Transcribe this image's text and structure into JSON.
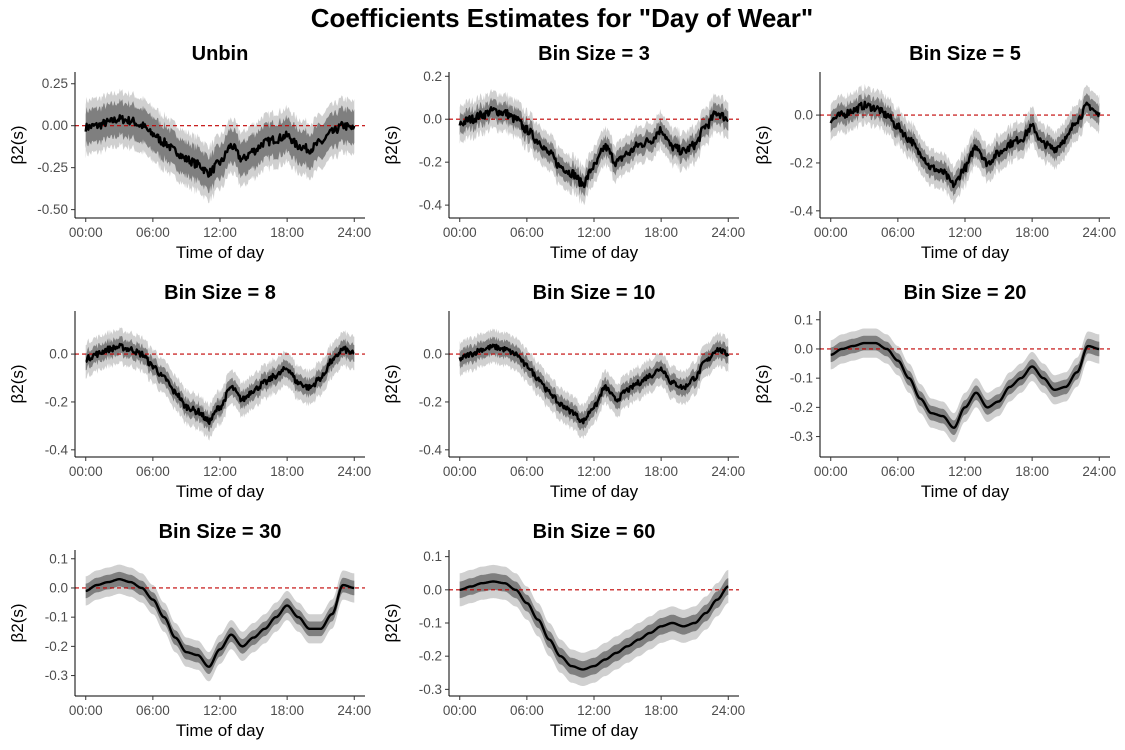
{
  "figure": {
    "title": "Coefficients Estimates for \"Day of Wear\"",
    "colors": {
      "estimate": "#000000",
      "inner_band": "#7f7f7f",
      "outer_band": "#d0d0d0",
      "zero_line": "#c00000",
      "axis": "#000000",
      "tick_text": "#4d4d4d"
    }
  },
  "chart_data": [
    {
      "type": "line",
      "title": "Unbin",
      "xlabel": "Time of day",
      "ylabel": "β2(s)",
      "xticks": [
        "00:00",
        "06:00",
        "12:00",
        "18:00",
        "24:00"
      ],
      "xlim": [
        0,
        24
      ],
      "yticks": [
        -0.5,
        -0.25,
        0,
        0.25
      ],
      "ytick_labels": [
        "-0.50",
        "-0.25",
        "0.00",
        "0.25"
      ],
      "ylim": [
        -0.55,
        0.32
      ],
      "noise": 0.025,
      "band_inner": 0.1,
      "band_outer": 0.16,
      "x": [
        0,
        1,
        2,
        3,
        4,
        5,
        6,
        7,
        8,
        9,
        10,
        11,
        12,
        13,
        14,
        15,
        16,
        17,
        18,
        19,
        20,
        21,
        22,
        23,
        24
      ],
      "y": [
        -0.01,
        0.0,
        0.02,
        0.04,
        0.03,
        0.0,
        -0.05,
        -0.1,
        -0.15,
        -0.2,
        -0.23,
        -0.28,
        -0.22,
        -0.12,
        -0.2,
        -0.15,
        -0.1,
        -0.08,
        -0.06,
        -0.12,
        -0.14,
        -0.1,
        -0.04,
        0.0,
        -0.02
      ]
    },
    {
      "type": "line",
      "title": "Bin Size = 3",
      "xlabel": "Time of day",
      "ylabel": "β2(s)",
      "xticks": [
        "00:00",
        "06:00",
        "12:00",
        "18:00",
        "24:00"
      ],
      "xlim": [
        0,
        24
      ],
      "yticks": [
        -0.4,
        -0.2,
        0,
        0.2
      ],
      "ytick_labels": [
        "-0.4",
        "-0.2",
        "0.0",
        "0.2"
      ],
      "ylim": [
        -0.46,
        0.22
      ],
      "noise": 0.02,
      "band_inner": 0.045,
      "band_outer": 0.085,
      "x": [
        0,
        1,
        2,
        3,
        4,
        5,
        6,
        7,
        8,
        9,
        10,
        11,
        12,
        13,
        14,
        15,
        16,
        17,
        18,
        19,
        20,
        21,
        22,
        23,
        24
      ],
      "y": [
        -0.02,
        0.0,
        0.02,
        0.04,
        0.03,
        0.0,
        -0.05,
        -0.1,
        -0.16,
        -0.22,
        -0.25,
        -0.3,
        -0.22,
        -0.13,
        -0.2,
        -0.16,
        -0.12,
        -0.1,
        -0.05,
        -0.13,
        -0.15,
        -0.12,
        -0.03,
        0.03,
        0.0
      ]
    },
    {
      "type": "line",
      "title": "Bin Size = 5",
      "xlabel": "Time of day",
      "ylabel": "β2(s)",
      "xticks": [
        "00:00",
        "06:00",
        "12:00",
        "18:00",
        "24:00"
      ],
      "xlim": [
        0,
        24
      ],
      "yticks": [
        -0.4,
        -0.2,
        0
      ],
      "ytick_labels": [
        "-0.4",
        "-0.2",
        "0.0"
      ],
      "ylim": [
        -0.43,
        0.18
      ],
      "noise": 0.016,
      "band_inner": 0.04,
      "band_outer": 0.075,
      "x": [
        0,
        1,
        2,
        3,
        4,
        5,
        6,
        7,
        8,
        9,
        10,
        11,
        12,
        13,
        14,
        15,
        16,
        17,
        18,
        19,
        20,
        21,
        22,
        23,
        24
      ],
      "y": [
        -0.02,
        0.0,
        0.02,
        0.04,
        0.03,
        0.0,
        -0.05,
        -0.1,
        -0.16,
        -0.22,
        -0.24,
        -0.29,
        -0.22,
        -0.13,
        -0.2,
        -0.16,
        -0.12,
        -0.1,
        -0.05,
        -0.12,
        -0.14,
        -0.1,
        -0.02,
        0.04,
        0.0
      ]
    },
    {
      "type": "line",
      "title": "Bin Size = 8",
      "xlabel": "Time of day",
      "ylabel": "β2(s)",
      "xticks": [
        "00:00",
        "06:00",
        "12:00",
        "18:00",
        "24:00"
      ],
      "xlim": [
        0,
        24
      ],
      "yticks": [
        -0.4,
        -0.2,
        0
      ],
      "ytick_labels": [
        "-0.4",
        "-0.2",
        "0.0"
      ],
      "ylim": [
        -0.43,
        0.18
      ],
      "noise": 0.013,
      "band_inner": 0.035,
      "band_outer": 0.07,
      "x": [
        0,
        1,
        2,
        3,
        4,
        5,
        6,
        7,
        8,
        9,
        10,
        11,
        12,
        13,
        14,
        15,
        16,
        17,
        18,
        19,
        20,
        21,
        22,
        23,
        24
      ],
      "y": [
        -0.02,
        0.0,
        0.02,
        0.03,
        0.02,
        0.0,
        -0.05,
        -0.1,
        -0.16,
        -0.22,
        -0.24,
        -0.28,
        -0.22,
        -0.14,
        -0.19,
        -0.15,
        -0.12,
        -0.09,
        -0.06,
        -0.12,
        -0.14,
        -0.1,
        -0.03,
        0.02,
        0.0
      ]
    },
    {
      "type": "line",
      "title": "Bin Size = 10",
      "xlabel": "Time of day",
      "ylabel": "β2(s)",
      "xticks": [
        "00:00",
        "06:00",
        "12:00",
        "18:00",
        "24:00"
      ],
      "xlim": [
        0,
        24
      ],
      "yticks": [
        -0.4,
        -0.2,
        0
      ],
      "ytick_labels": [
        "-0.4",
        "-0.2",
        "0.0"
      ],
      "ylim": [
        -0.43,
        0.18
      ],
      "noise": 0.011,
      "band_inner": 0.035,
      "band_outer": 0.068,
      "x": [
        0,
        1,
        2,
        3,
        4,
        5,
        6,
        7,
        8,
        9,
        10,
        11,
        12,
        13,
        14,
        15,
        16,
        17,
        18,
        19,
        20,
        21,
        22,
        23,
        24
      ],
      "y": [
        -0.02,
        0.0,
        0.02,
        0.03,
        0.02,
        0.0,
        -0.05,
        -0.1,
        -0.16,
        -0.21,
        -0.24,
        -0.28,
        -0.22,
        -0.14,
        -0.19,
        -0.15,
        -0.12,
        -0.09,
        -0.06,
        -0.12,
        -0.14,
        -0.1,
        -0.03,
        0.02,
        0.0
      ]
    },
    {
      "type": "line",
      "title": "Bin Size = 20",
      "xlabel": "Time of day",
      "ylabel": "β2(s)",
      "xticks": [
        "00:00",
        "06:00",
        "12:00",
        "18:00",
        "24:00"
      ],
      "xlim": [
        0,
        24
      ],
      "yticks": [
        -0.3,
        -0.2,
        -0.1,
        0,
        0.1
      ],
      "ytick_labels": [
        "-0.3",
        "-0.2",
        "-0.1",
        "0.0",
        "0.1"
      ],
      "ylim": [
        -0.37,
        0.13
      ],
      "noise": 0.0,
      "band_inner": 0.025,
      "band_outer": 0.05,
      "x": [
        0,
        1,
        2,
        3,
        4,
        5,
        6,
        7,
        8,
        9,
        10,
        11,
        12,
        13,
        14,
        15,
        16,
        17,
        18,
        19,
        20,
        21,
        22,
        23,
        24
      ],
      "y": [
        -0.02,
        0.0,
        0.01,
        0.02,
        0.02,
        0.0,
        -0.04,
        -0.1,
        -0.17,
        -0.22,
        -0.23,
        -0.27,
        -0.2,
        -0.15,
        -0.2,
        -0.18,
        -0.13,
        -0.1,
        -0.06,
        -0.1,
        -0.14,
        -0.13,
        -0.08,
        0.01,
        0.0
      ]
    },
    {
      "type": "line",
      "title": "Bin Size = 30",
      "xlabel": "Time of day",
      "ylabel": "β2(s)",
      "xticks": [
        "00:00",
        "06:00",
        "12:00",
        "18:00",
        "24:00"
      ],
      "xlim": [
        0,
        24
      ],
      "yticks": [
        -0.3,
        -0.2,
        -0.1,
        0,
        0.1
      ],
      "ytick_labels": [
        "-0.3",
        "-0.2",
        "-0.1",
        "0.0",
        "0.1"
      ],
      "ylim": [
        -0.37,
        0.13
      ],
      "noise": 0.0,
      "band_inner": 0.025,
      "band_outer": 0.05,
      "x": [
        0,
        1,
        2,
        3,
        4,
        5,
        6,
        7,
        8,
        9,
        10,
        11,
        12,
        13,
        14,
        15,
        16,
        17,
        18,
        19,
        20,
        21,
        22,
        23,
        24
      ],
      "y": [
        -0.01,
        0.01,
        0.02,
        0.03,
        0.02,
        0.0,
        -0.04,
        -0.1,
        -0.17,
        -0.22,
        -0.23,
        -0.27,
        -0.21,
        -0.16,
        -0.2,
        -0.17,
        -0.14,
        -0.1,
        -0.06,
        -0.1,
        -0.14,
        -0.14,
        -0.09,
        0.01,
        0.0
      ]
    },
    {
      "type": "line",
      "title": "Bin Size = 60",
      "xlabel": "Time of day",
      "ylabel": "β2(s)",
      "xticks": [
        "00:00",
        "06:00",
        "12:00",
        "18:00",
        "24:00"
      ],
      "xlim": [
        0,
        24
      ],
      "yticks": [
        -0.3,
        -0.2,
        -0.1,
        0,
        0.1
      ],
      "ytick_labels": [
        "-0.3",
        "-0.2",
        "-0.1",
        "0.0",
        "0.1"
      ],
      "ylim": [
        -0.32,
        0.12
      ],
      "noise": 0.0,
      "band_inner": 0.025,
      "band_outer": 0.05,
      "x": [
        0,
        1,
        2,
        3,
        4,
        5,
        6,
        7,
        8,
        9,
        10,
        11,
        12,
        13,
        14,
        15,
        16,
        17,
        18,
        19,
        20,
        21,
        22,
        23,
        24
      ],
      "y": [
        0.0,
        0.01,
        0.02,
        0.025,
        0.02,
        0.0,
        -0.04,
        -0.09,
        -0.15,
        -0.2,
        -0.23,
        -0.24,
        -0.23,
        -0.21,
        -0.19,
        -0.17,
        -0.15,
        -0.13,
        -0.11,
        -0.1,
        -0.11,
        -0.1,
        -0.07,
        -0.03,
        0.01
      ]
    }
  ]
}
